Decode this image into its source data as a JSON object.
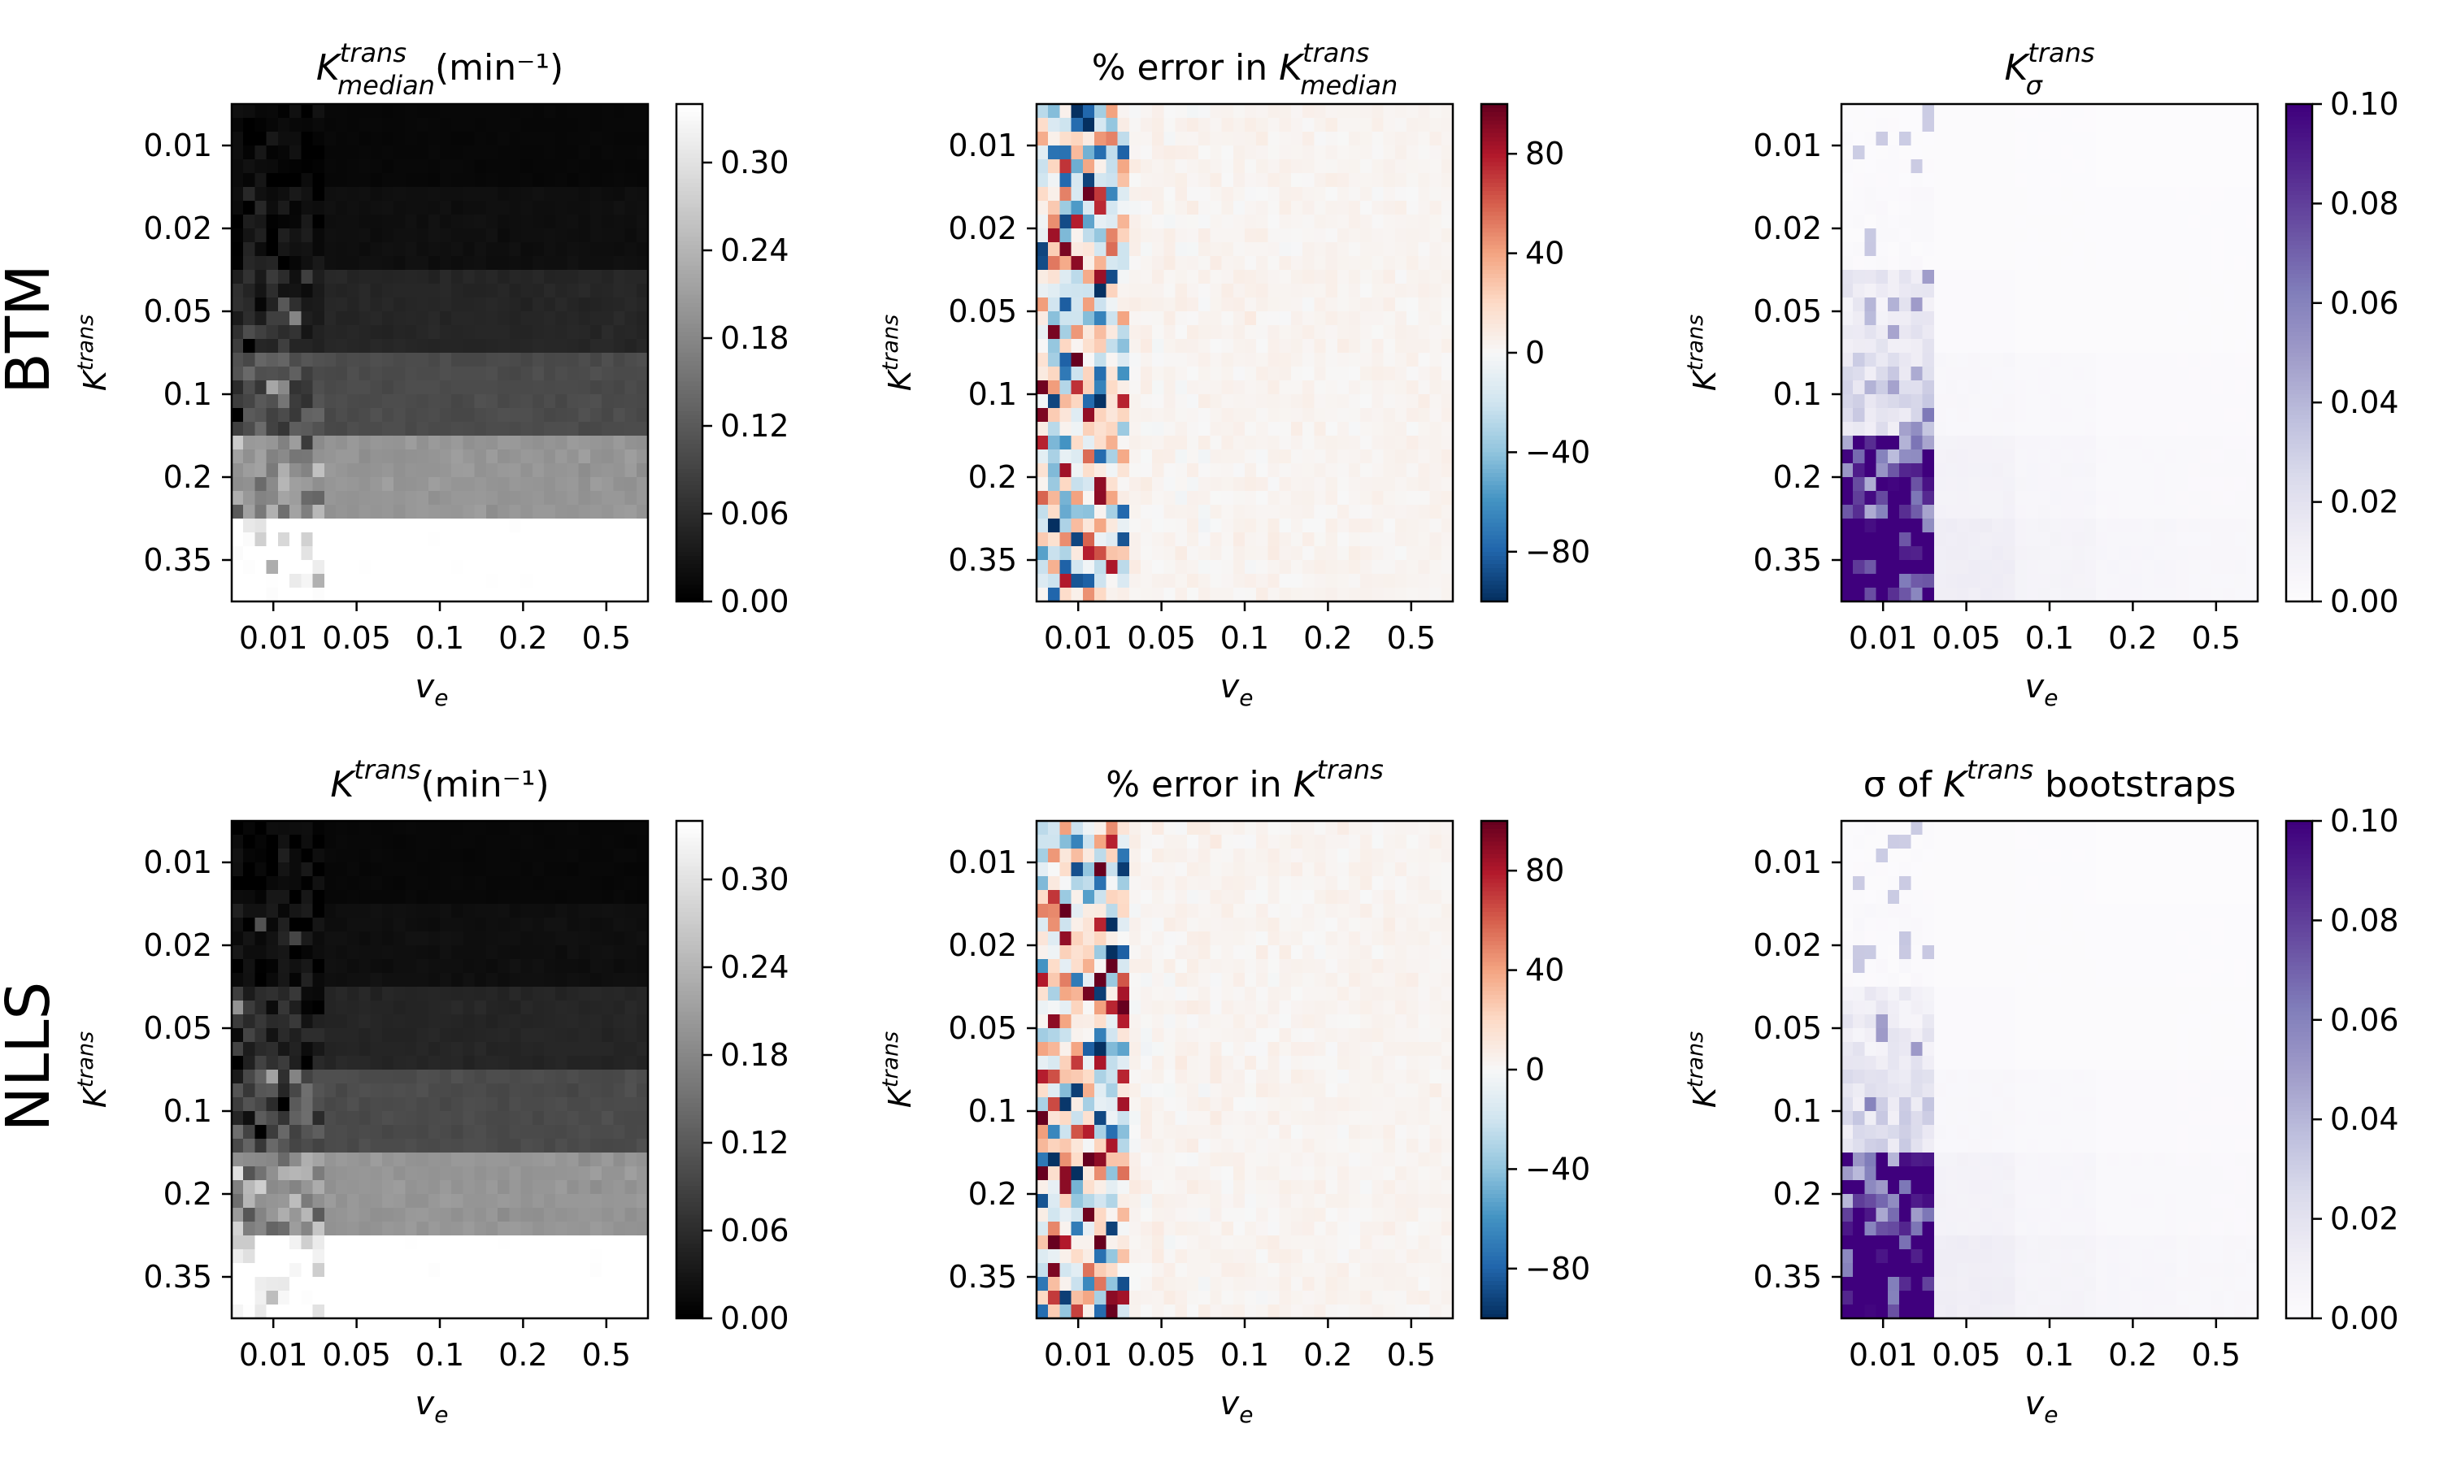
{
  "row_labels": [
    "BTM",
    "NLLS"
  ],
  "chart_data": [
    {
      "type": "heatmap",
      "id": "btm-kmedian",
      "row": 0,
      "col": 0,
      "cmap": "gray",
      "title": {
        "base": "K",
        "sup": "trans",
        "sub": "median",
        "rest": "(min⁻¹)"
      },
      "ylabel": {
        "base": "K",
        "sup": "trans"
      },
      "xlabel": {
        "base": "v",
        "sub": "e"
      },
      "yticks": [
        "0.01",
        "0.02",
        "0.05",
        "0.1",
        "0.2",
        "0.35"
      ],
      "xticks": [
        "0.01",
        "0.05",
        "0.1",
        "0.2",
        "0.5"
      ],
      "ktrans_levels": [
        0.01,
        0.02,
        0.05,
        0.1,
        0.2,
        0.35
      ],
      "ve_levels": [
        0.01,
        0.05,
        0.1,
        0.2,
        0.5
      ],
      "vmin": 0,
      "vmax": 0.34,
      "grid": [
        36,
        36
      ],
      "colorbar_ticks": [
        "0.00",
        "0.06",
        "0.12",
        "0.18",
        "0.24",
        "0.30"
      ],
      "colorbar_values": [
        0,
        0.06,
        0.12,
        0.18,
        0.24,
        0.3
      ],
      "noise_in_first_ve_block": 0.6
    },
    {
      "type": "heatmap",
      "id": "btm-err",
      "row": 0,
      "col": 1,
      "cmap": "RdBu_r",
      "title": {
        "pre": "% error in ",
        "base": "K",
        "sup": "trans",
        "sub": "median",
        "rest": ""
      },
      "ylabel": {
        "base": "K",
        "sup": "trans"
      },
      "xlabel": {
        "base": "v",
        "sub": "e"
      },
      "yticks": [
        "0.01",
        "0.02",
        "0.05",
        "0.1",
        "0.2",
        "0.35"
      ],
      "xticks": [
        "0.01",
        "0.05",
        "0.1",
        "0.2",
        "0.5"
      ],
      "vmin": -100,
      "vmax": 100,
      "grid": [
        36,
        36
      ],
      "colorbar_ticks": [
        "−80",
        "−40",
        "0",
        "40",
        "80"
      ],
      "colorbar_values": [
        -80,
        -40,
        0,
        40,
        80
      ]
    },
    {
      "type": "heatmap",
      "id": "btm-sigma",
      "row": 0,
      "col": 2,
      "cmap": "Purples",
      "title": {
        "base": "K",
        "sup": "trans",
        "sub": "σ",
        "rest": ""
      },
      "ylabel": {
        "base": "K",
        "sup": "trans"
      },
      "xlabel": {
        "base": "v",
        "sub": "e"
      },
      "yticks": [
        "0.01",
        "0.02",
        "0.05",
        "0.1",
        "0.2",
        "0.35"
      ],
      "xticks": [
        "0.01",
        "0.05",
        "0.1",
        "0.2",
        "0.5"
      ],
      "vmin": 0,
      "vmax": 0.1,
      "grid": [
        36,
        36
      ],
      "colorbar_ticks": [
        "0.00",
        "0.02",
        "0.04",
        "0.06",
        "0.08",
        "0.10"
      ],
      "colorbar_values": [
        0,
        0.02,
        0.04,
        0.06,
        0.08,
        0.1
      ]
    },
    {
      "type": "heatmap",
      "id": "nlls-k",
      "row": 1,
      "col": 0,
      "cmap": "gray",
      "title": {
        "base": "K",
        "sup": "trans",
        "rest": "(min⁻¹)"
      },
      "ylabel": {
        "base": "K",
        "sup": "trans"
      },
      "xlabel": {
        "base": "v",
        "sub": "e"
      },
      "yticks": [
        "0.01",
        "0.02",
        "0.05",
        "0.1",
        "0.2",
        "0.35"
      ],
      "xticks": [
        "0.01",
        "0.05",
        "0.1",
        "0.2",
        "0.5"
      ],
      "ktrans_levels": [
        0.01,
        0.02,
        0.05,
        0.1,
        0.2,
        0.35
      ],
      "ve_levels": [
        0.01,
        0.05,
        0.1,
        0.2,
        0.5
      ],
      "vmin": 0,
      "vmax": 0.34,
      "grid": [
        36,
        36
      ],
      "colorbar_ticks": [
        "0.00",
        "0.06",
        "0.12",
        "0.18",
        "0.24",
        "0.30"
      ],
      "colorbar_values": [
        0,
        0.06,
        0.12,
        0.18,
        0.24,
        0.3
      ],
      "noise_in_first_ve_block": 0.7
    },
    {
      "type": "heatmap",
      "id": "nlls-err",
      "row": 1,
      "col": 1,
      "cmap": "RdBu_r",
      "title": {
        "pre": "% error in ",
        "base": "K",
        "sup": "trans",
        "rest": ""
      },
      "ylabel": {
        "base": "K",
        "sup": "trans"
      },
      "xlabel": {
        "base": "v",
        "sub": "e"
      },
      "yticks": [
        "0.01",
        "0.02",
        "0.05",
        "0.1",
        "0.2",
        "0.35"
      ],
      "xticks": [
        "0.01",
        "0.05",
        "0.1",
        "0.2",
        "0.5"
      ],
      "vmin": -100,
      "vmax": 100,
      "grid": [
        36,
        36
      ],
      "colorbar_ticks": [
        "−80",
        "−40",
        "0",
        "40",
        "80"
      ],
      "colorbar_values": [
        -80,
        -40,
        0,
        40,
        80
      ]
    },
    {
      "type": "heatmap",
      "id": "nlls-sigma",
      "row": 1,
      "col": 2,
      "cmap": "Purples",
      "title": {
        "pre": "σ of ",
        "base": "K",
        "sup": "trans",
        "rest": " bootstraps"
      },
      "ylabel": {
        "base": "K",
        "sup": "trans"
      },
      "xlabel": {
        "base": "v",
        "sub": "e"
      },
      "yticks": [
        "0.01",
        "0.02",
        "0.05",
        "0.1",
        "0.2",
        "0.35"
      ],
      "xticks": [
        "0.01",
        "0.05",
        "0.1",
        "0.2",
        "0.5"
      ],
      "vmin": 0,
      "vmax": 0.1,
      "grid": [
        36,
        36
      ],
      "colorbar_ticks": [
        "0.00",
        "0.02",
        "0.04",
        "0.06",
        "0.08",
        "0.10"
      ],
      "colorbar_values": [
        0,
        0.02,
        0.04,
        0.06,
        0.08,
        0.1
      ]
    }
  ]
}
